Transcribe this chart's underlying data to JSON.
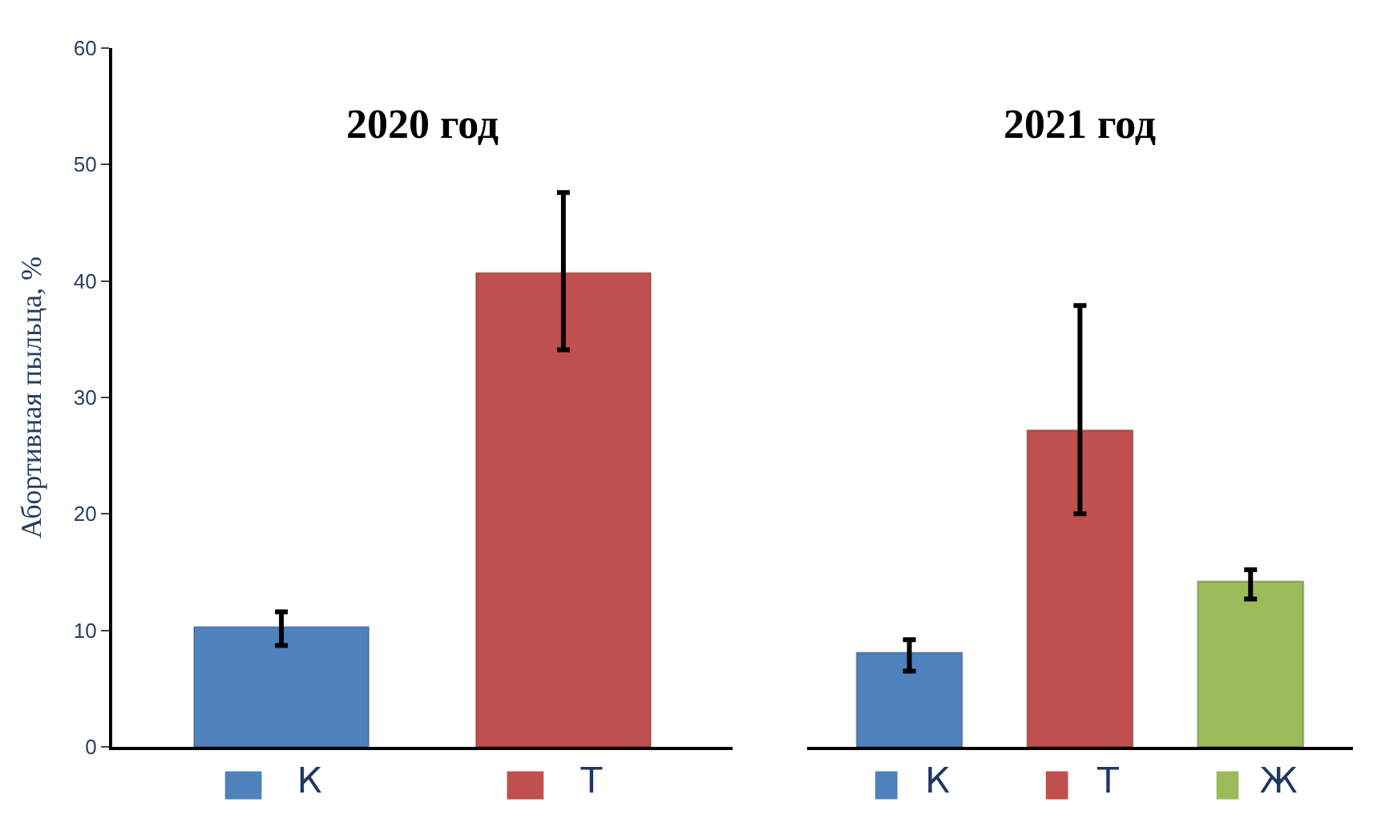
{
  "chart_data": [
    {
      "type": "bar",
      "title": "2020 год",
      "ylabel": "Абортивная пыльца, %",
      "categories": [
        "К",
        "Т"
      ],
      "colors": [
        "#4f81bd",
        "#c0504d"
      ],
      "values": [
        10.3,
        40.7
      ],
      "errors": [
        [
          8.7,
          11.6
        ],
        [
          34.1,
          47.6
        ]
      ],
      "ylim": [
        0,
        60
      ],
      "yticks": [
        0,
        10,
        20,
        30,
        40,
        50,
        60
      ]
    },
    {
      "type": "bar",
      "title": "2021 год",
      "categories": [
        "К",
        "Т",
        "Ж"
      ],
      "colors": [
        "#4f81bd",
        "#c0504d",
        "#9bbb59"
      ],
      "values": [
        8.1,
        27.2,
        14.2
      ],
      "errors": [
        [
          6.5,
          9.2
        ],
        [
          20,
          37.9
        ],
        [
          12.7,
          15.2
        ]
      ],
      "ylim": [
        0,
        60
      ],
      "yticks": [
        0,
        10,
        20,
        30,
        40,
        50,
        60
      ],
      "tick_labels": "x"
    }
  ]
}
